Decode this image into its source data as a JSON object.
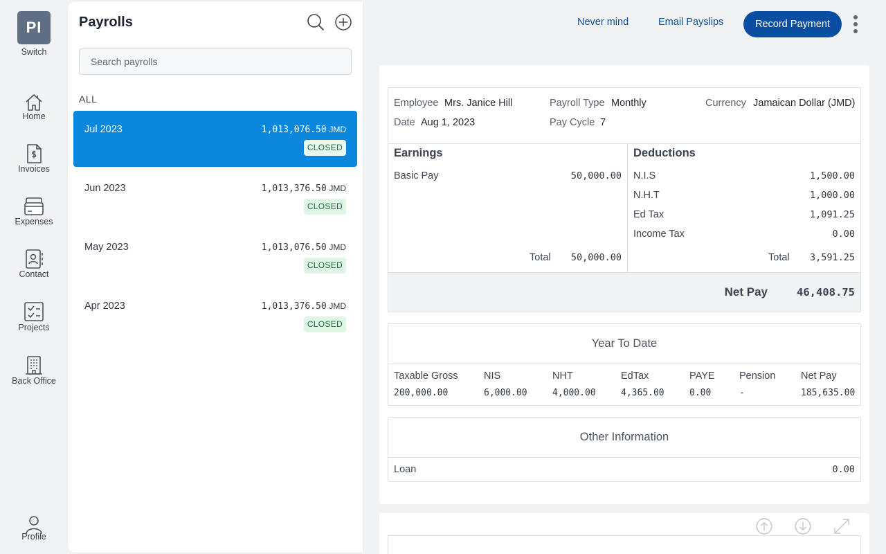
{
  "rail": {
    "logo": "PI",
    "switch_label": "Switch",
    "items": [
      {
        "label": "Home",
        "icon": "home-icon"
      },
      {
        "label": "Invoices",
        "icon": "invoice-icon"
      },
      {
        "label": "Expenses",
        "icon": "card-icon"
      },
      {
        "label": "Contact",
        "icon": "contact-book-icon"
      },
      {
        "label": "Projects",
        "icon": "checklist-icon"
      },
      {
        "label": "Back Office",
        "icon": "building-icon"
      }
    ],
    "profile_label": "Profile"
  },
  "list": {
    "title": "Payrolls",
    "search_placeholder": "Search payrolls",
    "group_label": "ALL",
    "items": [
      {
        "period": "Jul 2023",
        "amount": "1,013,076.50",
        "currency": "JMD",
        "status": "CLOSED",
        "active": true
      },
      {
        "period": "Jun 2023",
        "amount": "1,013,376.50",
        "currency": "JMD",
        "status": "CLOSED",
        "active": false
      },
      {
        "period": "May 2023",
        "amount": "1,013,076.50",
        "currency": "JMD",
        "status": "CLOSED",
        "active": false
      },
      {
        "period": "Apr 2023",
        "amount": "1,013,376.50",
        "currency": "JMD",
        "status": "CLOSED",
        "active": false
      }
    ]
  },
  "header": {
    "never_mind": "Never mind",
    "email_payslips": "Email Payslips",
    "record_payment": "Record Payment"
  },
  "payslip": {
    "employee_label": "Employee",
    "employee": "Mrs. Janice Hill",
    "payroll_type_label": "Payroll Type",
    "payroll_type": "Monthly",
    "currency_label": "Currency",
    "currency": "Jamaican Dollar (JMD)",
    "date_label": "Date",
    "date": "Aug 1, 2023",
    "pay_cycle_label": "Pay Cycle",
    "pay_cycle": "7",
    "earnings": {
      "title": "Earnings",
      "lines": [
        {
          "name": "Basic Pay",
          "amount": "50,000.00"
        }
      ],
      "total_label": "Total",
      "total": "50,000.00"
    },
    "deductions": {
      "title": "Deductions",
      "lines": [
        {
          "name": "N.I.S",
          "amount": "1,500.00"
        },
        {
          "name": "N.H.T",
          "amount": "1,000.00"
        },
        {
          "name": "Ed Tax",
          "amount": "1,091.25"
        },
        {
          "name": "Income Tax",
          "amount": "0.00"
        }
      ],
      "total_label": "Total",
      "total": "3,591.25"
    },
    "net_pay_label": "Net Pay",
    "net_pay": "46,408.75"
  },
  "ytd": {
    "title": "Year To Date",
    "columns": [
      {
        "label": "Taxable Gross",
        "value": "200,000.00"
      },
      {
        "label": "NIS",
        "value": "6,000.00"
      },
      {
        "label": "NHT",
        "value": "4,000.00"
      },
      {
        "label": "EdTax",
        "value": "4,365.00"
      },
      {
        "label": "PAYE",
        "value": "0.00"
      },
      {
        "label": "Pension",
        "value": "-"
      },
      {
        "label": "Net Pay",
        "value": "185,635.00"
      }
    ]
  },
  "other": {
    "title": "Other Information",
    "lines": [
      {
        "name": "Loan",
        "amount": "0.00"
      }
    ]
  },
  "colors": {
    "accent": "#0b87de",
    "primary_button": "#0a4ea3",
    "badge_bg": "#dff5e6",
    "badge_text": "#1b6d3a"
  }
}
